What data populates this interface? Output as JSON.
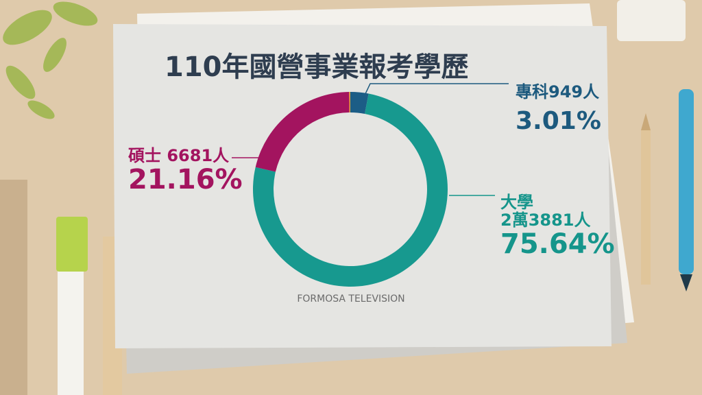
{
  "chart_data": {
    "type": "donut",
    "title": "110年國營事業報考學歷",
    "categories": [
      "專科949人",
      "大學",
      "碩士 6681人",
      null
    ],
    "sublabels": [
      null,
      "2萬3881人",
      null,
      null
    ],
    "values": [
      3.01,
      75.64,
      21.16,
      0.19
    ],
    "value_labels": [
      "3.01%",
      "75.64%",
      "21.16%",
      null
    ],
    "colors": [
      "#1c5d86",
      "#17998f",
      "#a3145f",
      "#e7a136"
    ],
    "label_colors": [
      "#1d5a7e",
      "#15958b",
      "#a3145f",
      null
    ],
    "source": "FORMOSA TELEVISION"
  }
}
